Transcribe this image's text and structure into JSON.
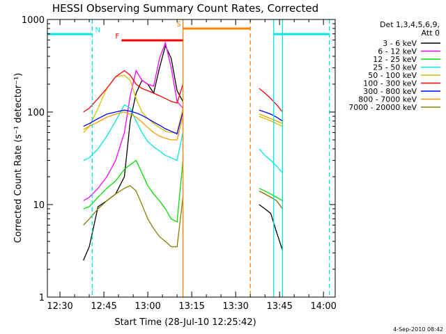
{
  "chart_data": {
    "type": "line",
    "title": "HESSI Observing Summary Count Rates, Corrected",
    "xlabel": "Start Time (28-Jul-10 12:25:42)",
    "ylabel": "Corrected Count Rate (s⁻¹ detector⁻¹)",
    "yscale": "log",
    "ylim": [
      1,
      1000
    ],
    "xlim": [
      "12:25:42",
      "14:04"
    ],
    "x_ticks": [
      "12:30",
      "12:45",
      "13:00",
      "13:15",
      "13:30",
      "13:45",
      "14:00"
    ],
    "y_ticks": [
      "1",
      "10",
      "100",
      "1000"
    ],
    "grid": false,
    "legend_position": "right",
    "legend_header": [
      "Det 1,3,4,5,6,9,",
      "Att 0"
    ],
    "footer_date": "4-Sep-2010 08:42",
    "flags": [
      {
        "label": "N",
        "color": "#00e5e5",
        "segments": [
          [
            "12:25:42",
            "12:41"
          ],
          [
            "13:43",
            "14:02"
          ]
        ]
      },
      {
        "label": "F",
        "color": "#ff0000",
        "segments": [
          [
            "12:51",
            "13:12"
          ]
        ]
      },
      {
        "label": "S",
        "color": "#ff8000",
        "segments": [
          [
            "13:12",
            "13:35"
          ]
        ]
      }
    ],
    "markers": [
      {
        "color": "#00e5e5",
        "style": "dashed",
        "x": "12:41"
      },
      {
        "color": "#00e5e5",
        "style": "dashed",
        "x": "14:02"
      },
      {
        "color": "#ff8000",
        "style": "dashed",
        "x": "13:35"
      },
      {
        "color": "#00e5e5",
        "style": "solid",
        "x": "13:43"
      },
      {
        "color": "#ff8000",
        "style": "solid",
        "x": "13:12"
      },
      {
        "color": "#00e5e5",
        "style": "solid",
        "x": "13:46"
      }
    ],
    "series": [
      {
        "name": "3 - 6 keV",
        "color": "#000000",
        "segment1": {
          "x": [
            "12:38",
            "12:40",
            "12:43",
            "12:46",
            "12:49",
            "12:52",
            "12:54",
            "12:56",
            "12:58",
            "13:00",
            "13:02",
            "13:04",
            "13:06",
            "13:08",
            "13:10",
            "13:12"
          ],
          "y": [
            2.5,
            3.5,
            9.5,
            11,
            13,
            20,
            80,
            160,
            220,
            200,
            160,
            300,
            520,
            380,
            170,
            130
          ]
        },
        "segment2": {
          "x": [
            "13:38",
            "13:40",
            "13:42",
            "13:44",
            "13:46"
          ],
          "y": [
            10,
            9,
            8,
            5,
            3.2
          ]
        }
      },
      {
        "name": "6 - 12 keV",
        "color": "#ff00ff",
        "segment1": {
          "x": [
            "12:38",
            "12:40",
            "12:43",
            "12:46",
            "12:49",
            "12:52",
            "12:54",
            "12:56",
            "12:58",
            "13:00",
            "13:02",
            "13:04",
            "13:06",
            "13:08",
            "13:10",
            "13:12"
          ],
          "y": [
            11,
            12,
            15,
            20,
            30,
            60,
            150,
            280,
            220,
            200,
            190,
            380,
            560,
            300,
            130,
            110
          ]
        },
        "segment2": {
          "x": [
            "13:38",
            "13:40",
            "13:42",
            "13:44",
            "13:46"
          ],
          "y": [
            14,
            13,
            12,
            11,
            9
          ]
        }
      },
      {
        "name": "12 - 25 keV",
        "color": "#00e000",
        "segment1": {
          "x": [
            "12:38",
            "12:40",
            "12:43",
            "12:46",
            "12:49",
            "12:52",
            "12:54",
            "12:56",
            "12:58",
            "13:00",
            "13:02",
            "13:04",
            "13:06",
            "13:08",
            "13:10",
            "13:12"
          ],
          "y": [
            9,
            9.5,
            12,
            15,
            18,
            24,
            27,
            30,
            22,
            16,
            13,
            11,
            9,
            7,
            6.5,
            30
          ]
        },
        "segment2": {
          "x": [
            "13:38",
            "13:40",
            "13:42",
            "13:44",
            "13:46"
          ],
          "y": [
            15,
            14,
            13,
            12,
            11
          ]
        }
      },
      {
        "name": "25 - 50 keV",
        "color": "#00e5e5",
        "segment1": {
          "x": [
            "12:38",
            "12:40",
            "12:43",
            "12:46",
            "12:49",
            "12:52",
            "12:54",
            "12:56",
            "12:58",
            "13:00",
            "13:02",
            "13:04",
            "13:06",
            "13:08",
            "13:10",
            "13:12"
          ],
          "y": [
            30,
            32,
            40,
            55,
            80,
            120,
            110,
            80,
            60,
            48,
            42,
            38,
            34,
            32,
            30,
            60
          ]
        },
        "segment2": {
          "x": [
            "13:38",
            "13:40",
            "13:42",
            "13:44",
            "13:46"
          ],
          "y": [
            40,
            34,
            30,
            26,
            22
          ]
        }
      },
      {
        "name": "50 - 100 keV",
        "color": "#d4c000",
        "segment1": {
          "x": [
            "12:38",
            "12:40",
            "12:43",
            "12:46",
            "12:49",
            "12:52",
            "12:54",
            "12:56",
            "12:58",
            "13:00",
            "13:02",
            "13:04",
            "13:06",
            "13:08",
            "13:10",
            "13:12"
          ],
          "y": [
            60,
            70,
            110,
            180,
            240,
            250,
            220,
            140,
            100,
            85,
            75,
            68,
            62,
            60,
            60,
            110
          ]
        },
        "segment2": {
          "x": [
            "13:38",
            "13:40",
            "13:42",
            "13:44",
            "13:46"
          ],
          "y": [
            90,
            85,
            80,
            75,
            70
          ]
        }
      },
      {
        "name": "100 - 300 keV",
        "color": "#ff0000",
        "segment1": {
          "x": [
            "12:38",
            "12:40",
            "12:43",
            "12:46",
            "12:49",
            "12:52",
            "12:54",
            "12:56",
            "12:58",
            "13:00",
            "13:02",
            "13:04",
            "13:06",
            "13:08",
            "13:10",
            "13:12"
          ],
          "y": [
            100,
            110,
            140,
            180,
            240,
            280,
            250,
            200,
            180,
            170,
            160,
            150,
            140,
            130,
            125,
            200
          ]
        },
        "segment2": {
          "x": [
            "13:38",
            "13:40",
            "13:42",
            "13:44",
            "13:46"
          ],
          "y": [
            180,
            160,
            140,
            120,
            100
          ]
        }
      },
      {
        "name": "300 - 800 keV",
        "color": "#0000ff",
        "segment1": {
          "x": [
            "12:38",
            "12:40",
            "12:43",
            "12:46",
            "12:49",
            "12:52",
            "12:54",
            "12:56",
            "12:58",
            "13:00",
            "13:02",
            "13:04",
            "13:06",
            "13:08",
            "13:10",
            "13:12"
          ],
          "y": [
            70,
            75,
            85,
            95,
            100,
            105,
            102,
            98,
            92,
            85,
            78,
            72,
            66,
            62,
            58,
            100
          ]
        },
        "segment2": {
          "x": [
            "13:38",
            "13:40",
            "13:42",
            "13:44",
            "13:46"
          ],
          "y": [
            105,
            100,
            95,
            88,
            80
          ]
        }
      },
      {
        "name": "800 - 7000 keV",
        "color": "#ff9900",
        "segment1": {
          "x": [
            "12:38",
            "12:40",
            "12:43",
            "12:46",
            "12:49",
            "12:52",
            "12:54",
            "12:56",
            "12:58",
            "13:00",
            "13:02",
            "13:04",
            "13:06",
            "13:08",
            "13:10",
            "13:12"
          ],
          "y": [
            65,
            70,
            78,
            88,
            95,
            100,
            95,
            88,
            78,
            68,
            60,
            55,
            52,
            50,
            50,
            90
          ]
        },
        "segment2": {
          "x": [
            "13:38",
            "13:40",
            "13:42",
            "13:44",
            "13:46"
          ],
          "y": [
            95,
            90,
            85,
            80,
            75
          ]
        }
      },
      {
        "name": "7000 - 20000 keV",
        "color": "#8b7d00",
        "segment1": {
          "x": [
            "12:38",
            "12:40",
            "12:43",
            "12:46",
            "12:49",
            "12:52",
            "12:54",
            "12:56",
            "12:58",
            "13:00",
            "13:02",
            "13:04",
            "13:06",
            "13:08",
            "13:10",
            "13:12"
          ],
          "y": [
            6,
            7,
            9,
            11,
            13,
            15,
            16,
            14,
            10,
            7,
            5.5,
            4.5,
            4,
            3.5,
            3.5,
            12
          ]
        },
        "segment2": {
          "x": [
            "13:38",
            "13:40",
            "13:42",
            "13:44",
            "13:46"
          ],
          "y": [
            14,
            13,
            12,
            11,
            9
          ]
        }
      }
    ]
  }
}
